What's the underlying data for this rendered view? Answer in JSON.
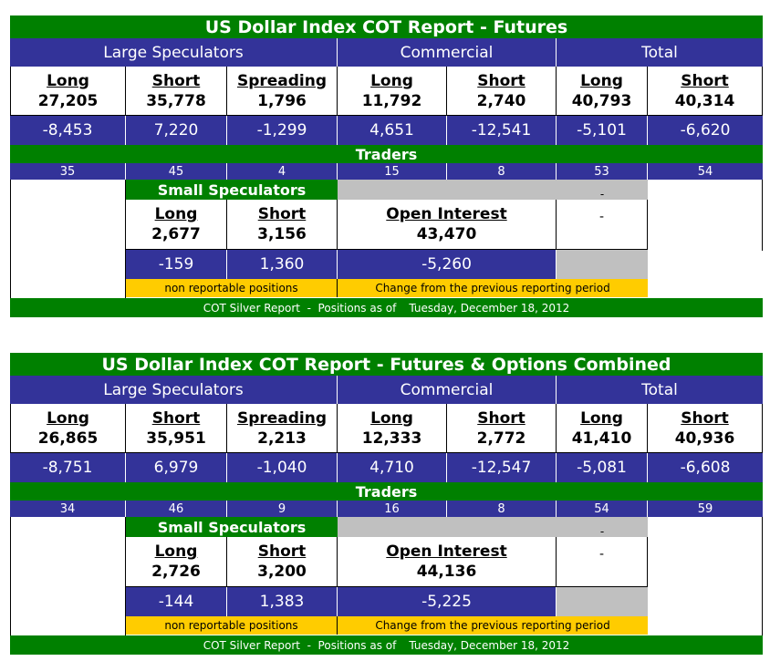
{
  "reports": [
    {
      "title": "US Dollar Index COT Report - Futures",
      "groups": [
        "Large Speculators",
        "Commercial",
        "Total"
      ],
      "positions": [
        {
          "label": "Long",
          "value": "27,205",
          "change": "-8,453"
        },
        {
          "label": "Short",
          "value": "35,778",
          "change": "7,220"
        },
        {
          "label": "Spreading",
          "value": "1,796",
          "change": "-1,299"
        },
        {
          "label": "Long",
          "value": "11,792",
          "change": "4,651"
        },
        {
          "label": "Short",
          "value": "2,740",
          "change": "-12,541"
        },
        {
          "label": "Long",
          "value": "40,793",
          "change": "-5,101"
        },
        {
          "label": "Short",
          "value": "40,314",
          "change": "-6,620"
        }
      ],
      "traders_label": "Traders",
      "traders": [
        "35",
        "45",
        "4",
        "15",
        "8",
        "53",
        "54"
      ],
      "small_specs": {
        "title": "Small Speculators",
        "long_label": "Long",
        "long_value": "2,677",
        "long_change": "-159",
        "short_label": "Short",
        "short_value": "3,156",
        "short_change": "1,360"
      },
      "open_interest": {
        "label": "Open Interest",
        "value": "43,470",
        "change": "-5,260"
      },
      "dash_top": "-",
      "dash_mid": "-",
      "non_reportable_note": "non reportable positions",
      "change_note": "Change from the previous reporting period",
      "footer_text": "COT Silver Report  -  Positions as of",
      "footer_date": "Tuesday, December 18, 2012"
    },
    {
      "title": "US Dollar Index COT Report - Futures & Options Combined",
      "groups": [
        "Large Speculators",
        "Commercial",
        "Total"
      ],
      "positions": [
        {
          "label": "Long",
          "value": "26,865",
          "change": "-8,751"
        },
        {
          "label": "Short",
          "value": "35,951",
          "change": "6,979"
        },
        {
          "label": "Spreading",
          "value": "2,213",
          "change": "-1,040"
        },
        {
          "label": "Long",
          "value": "12,333",
          "change": "4,710"
        },
        {
          "label": "Short",
          "value": "2,772",
          "change": "-12,547"
        },
        {
          "label": "Long",
          "value": "41,410",
          "change": "-5,081"
        },
        {
          "label": "Short",
          "value": "40,936",
          "change": "-6,608"
        }
      ],
      "traders_label": "Traders",
      "traders": [
        "34",
        "46",
        "9",
        "16",
        "8",
        "54",
        "59"
      ],
      "small_specs": {
        "title": "Small Speculators",
        "long_label": "Long",
        "long_value": "2,726",
        "long_change": "-144",
        "short_label": "Short",
        "short_value": "3,200",
        "short_change": "1,383"
      },
      "open_interest": {
        "label": "Open Interest",
        "value": "44,136",
        "change": "-5,225"
      },
      "dash_top": "-",
      "dash_mid": "-",
      "non_reportable_note": "non reportable positions",
      "change_note": "Change from the previous reporting period",
      "footer_text": "COT Silver Report  -  Positions as of",
      "footer_date": "Tuesday, December 18, 2012"
    }
  ]
}
